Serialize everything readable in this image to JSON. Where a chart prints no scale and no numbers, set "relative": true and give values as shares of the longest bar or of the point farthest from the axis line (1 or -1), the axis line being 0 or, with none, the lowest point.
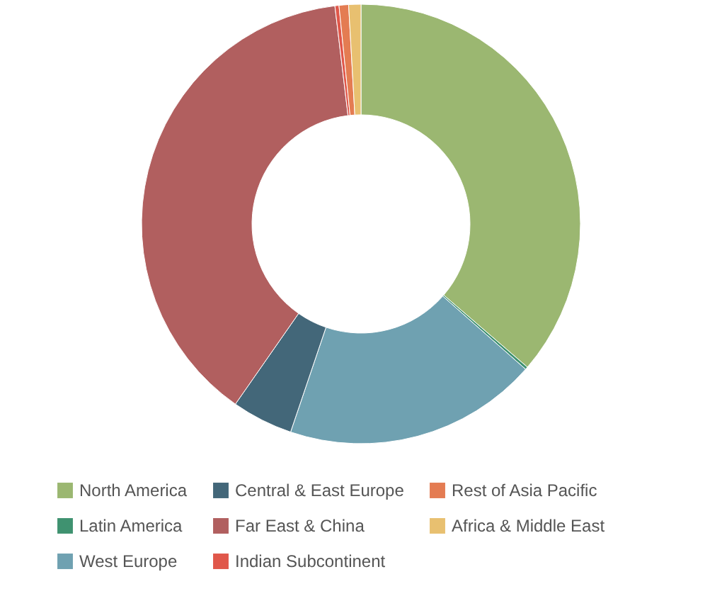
{
  "chart_data": {
    "type": "donut",
    "relative": true,
    "legend": "bottom",
    "categories": [
      "North America",
      "Latin America",
      "West Europe",
      "Central & East Europe",
      "Far East & China",
      "Indian Subcontinent",
      "Rest of Asia Pacific",
      "Africa & Middle East"
    ],
    "values": [
      36.3,
      0.2,
      18.7,
      4.5,
      38.4,
      0.3,
      0.7,
      0.9
    ],
    "colors": [
      "#9bb771",
      "#3f9270",
      "#6fa1b1",
      "#436779",
      "#b15f5f",
      "#e0574a",
      "#e47c52",
      "#e8c070"
    ]
  }
}
